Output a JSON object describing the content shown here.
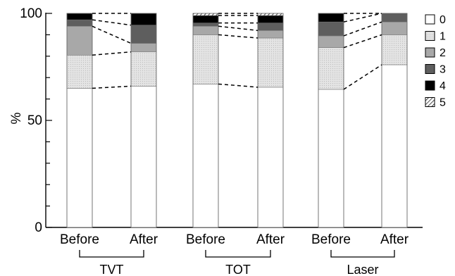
{
  "chart_data": {
    "type": "bar",
    "stacked": true,
    "ylabel": "%",
    "ylim": [
      0,
      100
    ],
    "yticks": [
      0,
      50,
      100
    ],
    "categories": [
      "Before",
      "After",
      "Before",
      "After",
      "Before",
      "After"
    ],
    "groups": [
      "TVT",
      "TOT",
      "Laser"
    ],
    "legend_position": "right",
    "series": [
      {
        "name": "0",
        "values": [
          65,
          66,
          67,
          65.5,
          64.5,
          76
        ],
        "color": "#ffffff"
      },
      {
        "name": "1",
        "values": [
          15.5,
          16,
          23,
          23,
          19.5,
          14
        ],
        "color": "#e2e2e2"
      },
      {
        "name": "2",
        "values": [
          13.5,
          4,
          4,
          3.5,
          5.5,
          6
        ],
        "color": "#a8a8a8"
      },
      {
        "name": "3",
        "values": [
          3,
          8.5,
          1.5,
          3.5,
          6.5,
          4
        ],
        "color": "#5e5e5e"
      },
      {
        "name": "4",
        "values": [
          3,
          5.5,
          3.5,
          3.5,
          4,
          0
        ],
        "color": "#000000"
      },
      {
        "name": "5",
        "values": [
          0,
          0,
          1,
          1,
          0,
          0
        ],
        "color": "hatch"
      }
    ]
  }
}
